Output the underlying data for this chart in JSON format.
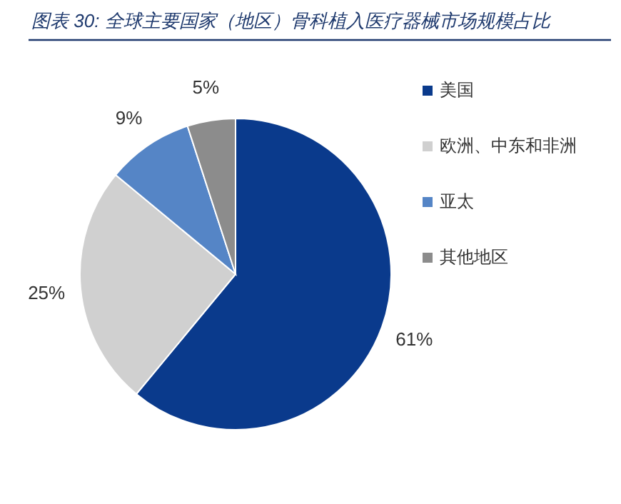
{
  "chart_data": {
    "type": "pie",
    "title": "图表 30:  全球主要国家（地区）骨科植入医疗器械市场规模占比",
    "categories": [
      "美国",
      "欧洲、中东和非洲",
      "亚太",
      "其他地区"
    ],
    "values": [
      61,
      25,
      9,
      5
    ],
    "value_labels": [
      "61%",
      "25%",
      "9%",
      "5%"
    ],
    "colors": [
      "#0a3a8c",
      "#d0d0d0",
      "#5585c6",
      "#8c8c8c"
    ],
    "legend": "right"
  }
}
